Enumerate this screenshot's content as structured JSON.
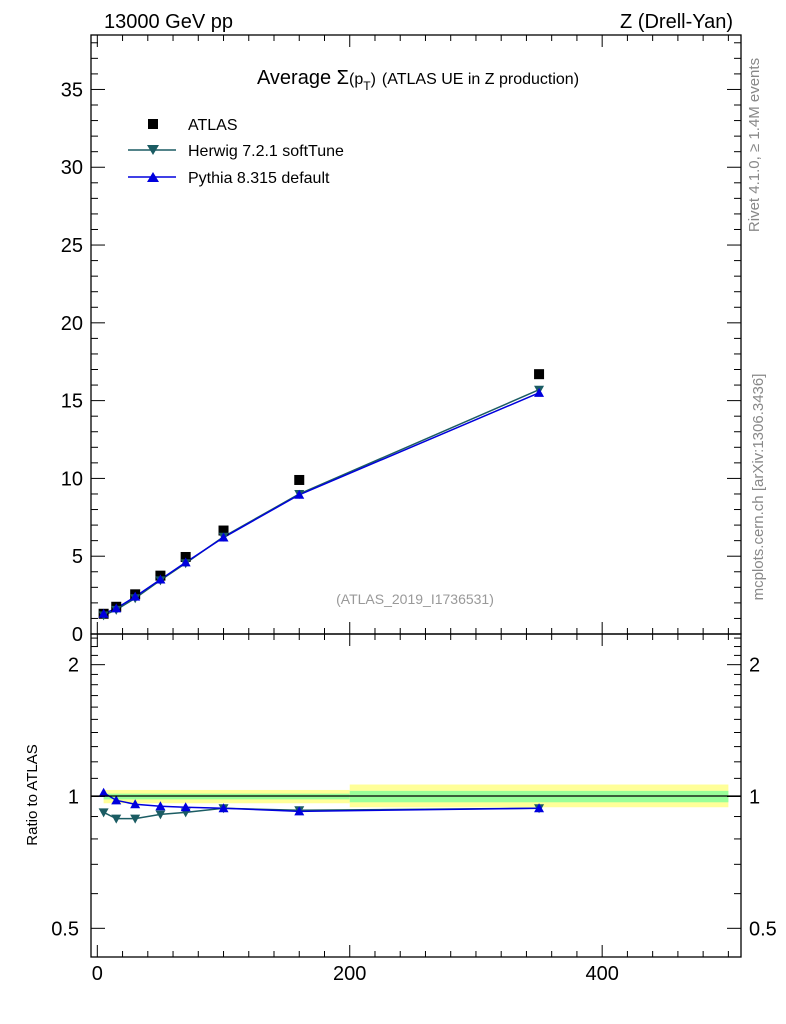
{
  "header": {
    "left": "13000 GeV pp",
    "right": "Z (Drell-Yan)"
  },
  "side": {
    "rivet": "Rivet 4.1.0, ≥ 1.4M events",
    "mcplots": "mcplots.cern.ch [arXiv:1306.3436]"
  },
  "chart_data": {
    "type": "scatter",
    "title_prefix": "Average ",
    "title_sigma": "Σ",
    "title_p": "(p",
    "title_sub": "T",
    "title_close": ")",
    "title_suffix": "(ATLAS UE in Z production)",
    "analysis_label": "(ATLAS_2019_I1736531)",
    "ratio_ylabel": "Ratio to ATLAS",
    "xlim": [
      -5,
      510
    ],
    "ylim_main": [
      0,
      38.5
    ],
    "ylim_ratio": [
      0.43,
      2.35
    ],
    "xticks": [
      0,
      200,
      400
    ],
    "xtick_labels": [
      "0",
      "200",
      "400"
    ],
    "yticks_main": [
      0,
      5,
      10,
      15,
      20,
      25,
      30,
      35
    ],
    "ytick_labels_main": [
      "0",
      "5",
      "10",
      "15",
      "20",
      "25",
      "30",
      "35"
    ],
    "yticks_ratio": [
      0.5,
      1,
      2
    ],
    "ytick_labels_ratio": [
      "0.5",
      "1",
      "2"
    ],
    "x": [
      5,
      15,
      30,
      50,
      70,
      100,
      160,
      350
    ],
    "series": [
      {
        "name": "ATLAS",
        "marker": "square",
        "color": "#000000",
        "values": [
          1.3,
          1.75,
          2.55,
          3.75,
          4.95,
          6.65,
          9.9,
          16.7
        ],
        "ratio": [
          1,
          1,
          1,
          1,
          1,
          1,
          1,
          1
        ]
      },
      {
        "name": "Herwig 7.2.1 softTune",
        "marker": "triangle-down",
        "color": "#1b5c63",
        "values": [
          1.2,
          1.55,
          2.3,
          3.45,
          4.55,
          6.25,
          9.0,
          15.7
        ],
        "ratio": [
          0.92,
          0.89,
          0.89,
          0.91,
          0.92,
          0.94,
          0.93,
          0.94
        ]
      },
      {
        "name": "Pythia 8.315 default",
        "marker": "triangle-up",
        "color": "#0000dd",
        "values": [
          1.3,
          1.65,
          2.4,
          3.5,
          4.6,
          6.2,
          8.95,
          15.5
        ],
        "ratio": [
          1.02,
          0.98,
          0.96,
          0.95,
          0.945,
          0.94,
          0.925,
          0.94
        ]
      }
    ],
    "ratio_bands": [
      {
        "x": [
          5,
          200
        ],
        "yellow": [
          0.965,
          1.035
        ],
        "green": [
          0.985,
          1.015
        ]
      },
      {
        "x": [
          200,
          500
        ],
        "yellow": [
          0.945,
          1.065
        ],
        "green": [
          0.97,
          1.03
        ]
      }
    ]
  }
}
